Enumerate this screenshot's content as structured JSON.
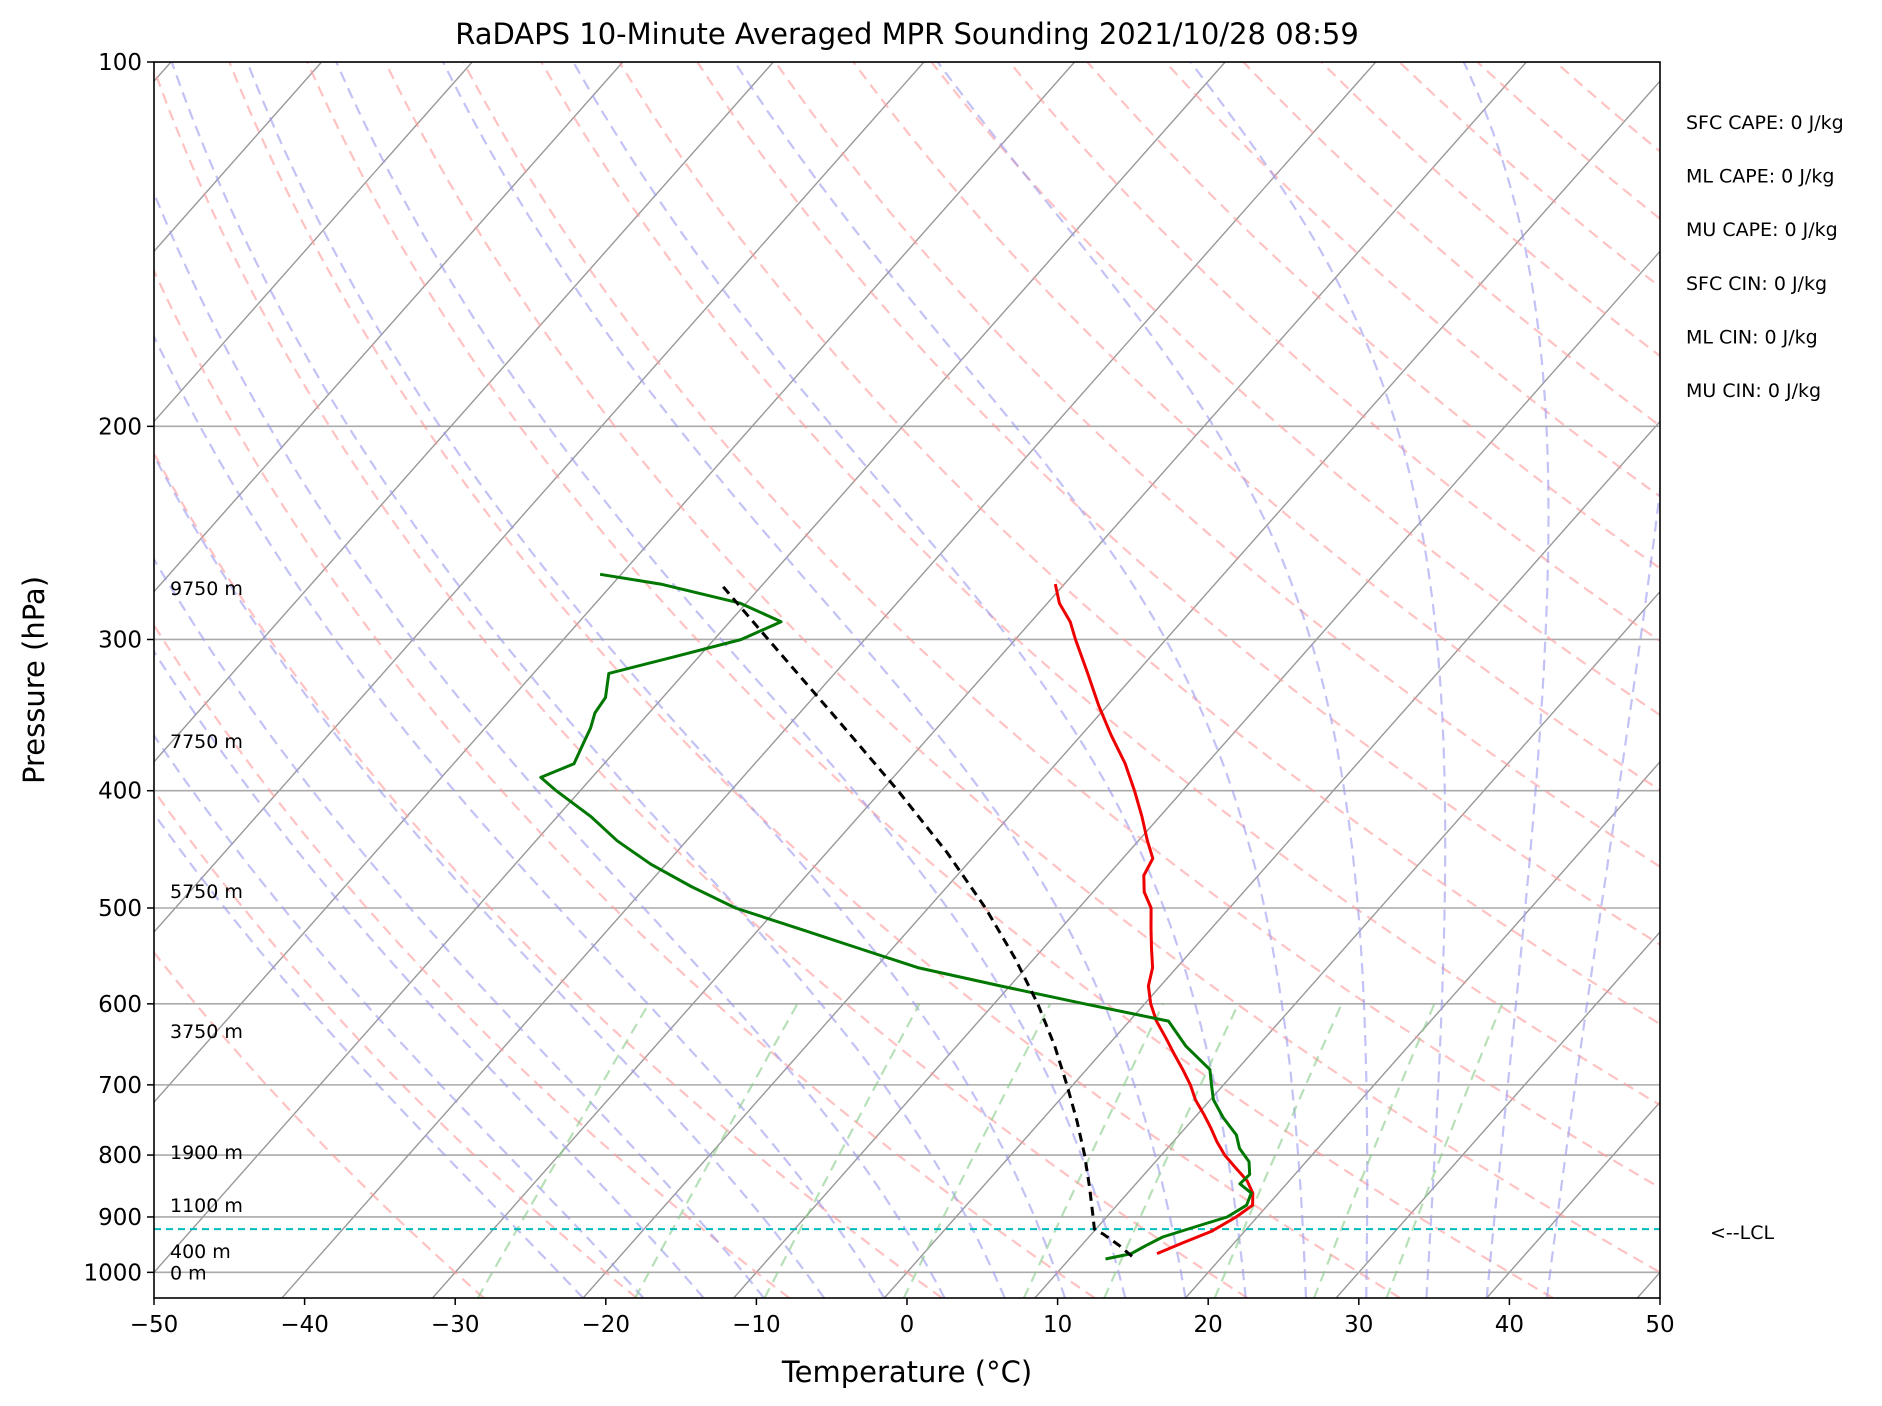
{
  "chart_data": {
    "type": "line",
    "chart_kind": "skew-T log-P sounding",
    "title": "RaDAPS 10-Minute Averaged MPR Sounding 2021/10/28 08:59",
    "xlabel": "Temperature (°C)",
    "ylabel": "Pressure (hPa)",
    "xlim": [
      -50,
      50
    ],
    "ylim": [
      1050,
      100
    ],
    "y_scale": "log",
    "grid": true,
    "x_ticks": [
      -50,
      -40,
      -30,
      -20,
      -10,
      0,
      10,
      20,
      30,
      40,
      50
    ],
    "x_tick_labels": [
      "−50",
      "−40",
      "−30",
      "−20",
      "−10",
      "0",
      "10",
      "20",
      "30",
      "40",
      "50"
    ],
    "y_ticks": [
      100,
      200,
      300,
      400,
      500,
      600,
      700,
      800,
      900,
      1000
    ],
    "y_tick_labels": [
      "100",
      "200",
      "300",
      "400",
      "500",
      "600",
      "700",
      "800",
      "900",
      "1000"
    ],
    "series": [
      {
        "role": "temperature",
        "color": "#ee0000",
        "points": [
          {
            "p": 965,
            "t": 15.5
          },
          {
            "p": 945,
            "t": 16.6
          },
          {
            "p": 925,
            "t": 17.8
          },
          {
            "p": 900,
            "t": 18.6
          },
          {
            "p": 880,
            "t": 19.0
          },
          {
            "p": 860,
            "t": 18.3
          },
          {
            "p": 840,
            "t": 17.2
          },
          {
            "p": 820,
            "t": 15.7
          },
          {
            "p": 800,
            "t": 14.2
          },
          {
            "p": 780,
            "t": 12.9
          },
          {
            "p": 760,
            "t": 11.7
          },
          {
            "p": 740,
            "t": 10.4
          },
          {
            "p": 720,
            "t": 9.0
          },
          {
            "p": 700,
            "t": 7.8
          },
          {
            "p": 680,
            "t": 6.4
          },
          {
            "p": 660,
            "t": 4.9
          },
          {
            "p": 640,
            "t": 3.4
          },
          {
            "p": 620,
            "t": 1.8
          },
          {
            "p": 600,
            "t": 0.4
          },
          {
            "p": 580,
            "t": -0.8
          },
          {
            "p": 560,
            "t": -1.6
          },
          {
            "p": 540,
            "t": -2.8
          },
          {
            "p": 520,
            "t": -4.0
          },
          {
            "p": 500,
            "t": -5.2
          },
          {
            "p": 485,
            "t": -6.6
          },
          {
            "p": 470,
            "t": -7.6
          },
          {
            "p": 455,
            "t": -8.0
          },
          {
            "p": 440,
            "t": -9.4
          },
          {
            "p": 420,
            "t": -11.2
          },
          {
            "p": 400,
            "t": -13.2
          },
          {
            "p": 380,
            "t": -15.4
          },
          {
            "p": 360,
            "t": -18.0
          },
          {
            "p": 340,
            "t": -20.6
          },
          {
            "p": 320,
            "t": -23.2
          },
          {
            "p": 300,
            "t": -26.0
          },
          {
            "p": 290,
            "t": -27.4
          },
          {
            "p": 280,
            "t": -29.2
          },
          {
            "p": 270,
            "t": -30.6
          }
        ]
      },
      {
        "role": "dewpoint",
        "color": "#007700",
        "points": [
          {
            "p": 975,
            "t": 12.4
          },
          {
            "p": 965,
            "t": 13.8
          },
          {
            "p": 950,
            "t": 14.3
          },
          {
            "p": 935,
            "t": 14.9
          },
          {
            "p": 920,
            "t": 16.2
          },
          {
            "p": 900,
            "t": 18.0
          },
          {
            "p": 880,
            "t": 18.6
          },
          {
            "p": 860,
            "t": 18.2
          },
          {
            "p": 845,
            "t": 16.9
          },
          {
            "p": 830,
            "t": 17.0
          },
          {
            "p": 810,
            "t": 16.2
          },
          {
            "p": 790,
            "t": 14.8
          },
          {
            "p": 770,
            "t": 13.8
          },
          {
            "p": 745,
            "t": 11.9
          },
          {
            "p": 720,
            "t": 10.2
          },
          {
            "p": 700,
            "t": 9.2
          },
          {
            "p": 680,
            "t": 8.2
          },
          {
            "p": 650,
            "t": 5.2
          },
          {
            "p": 620,
            "t": 2.6
          },
          {
            "p": 600,
            "t": -4.0
          },
          {
            "p": 580,
            "t": -10.6
          },
          {
            "p": 560,
            "t": -17.2
          },
          {
            "p": 540,
            "t": -22.2
          },
          {
            "p": 520,
            "t": -27.4
          },
          {
            "p": 500,
            "t": -32.8
          },
          {
            "p": 480,
            "t": -37.0
          },
          {
            "p": 460,
            "t": -41.0
          },
          {
            "p": 440,
            "t": -44.6
          },
          {
            "p": 420,
            "t": -47.8
          },
          {
            "p": 400,
            "t": -51.6
          },
          {
            "p": 390,
            "t": -53.4
          },
          {
            "p": 380,
            "t": -52.0
          },
          {
            "p": 365,
            "t": -52.6
          },
          {
            "p": 355,
            "t": -53.0
          },
          {
            "p": 345,
            "t": -53.6
          },
          {
            "p": 335,
            "t": -53.8
          },
          {
            "p": 320,
            "t": -55.0
          },
          {
            "p": 310,
            "t": -51.6
          },
          {
            "p": 300,
            "t": -48.2
          },
          {
            "p": 290,
            "t": -46.6
          },
          {
            "p": 280,
            "t": -50.4
          },
          {
            "p": 270,
            "t": -56.8
          },
          {
            "p": 265,
            "t": -61.4
          }
        ]
      },
      {
        "role": "parcel-profile",
        "color": "#000000",
        "points": [
          {
            "p": 970,
            "t": 14.0
          },
          {
            "p": 950,
            "t": 12.5
          },
          {
            "p": 930,
            "t": 10.8
          },
          {
            "p": 921,
            "t": 9.9
          },
          {
            "p": 900,
            "t": 9.1
          },
          {
            "p": 850,
            "t": 7.1
          },
          {
            "p": 800,
            "t": 4.9
          },
          {
            "p": 750,
            "t": 2.4
          },
          {
            "p": 700,
            "t": -0.4
          },
          {
            "p": 650,
            "t": -3.5
          },
          {
            "p": 600,
            "t": -7.1
          },
          {
            "p": 550,
            "t": -11.3
          },
          {
            "p": 500,
            "t": -16.2
          },
          {
            "p": 450,
            "t": -22.0
          },
          {
            "p": 400,
            "t": -28.9
          },
          {
            "p": 350,
            "t": -37.0
          },
          {
            "p": 300,
            "t": -46.4
          },
          {
            "p": 270,
            "t": -52.8
          }
        ]
      }
    ],
    "lcl": {
      "p": 921,
      "label": "<--LCL"
    },
    "height_labels": [
      {
        "p": 272,
        "text": "9750 m"
      },
      {
        "p": 364,
        "text": "7750 m"
      },
      {
        "p": 484,
        "text": "5750 m"
      },
      {
        "p": 632,
        "text": "3750 m"
      },
      {
        "p": 795,
        "text": "1900 m"
      },
      {
        "p": 880,
        "text": "1100 m"
      },
      {
        "p": 960,
        "text": "400 m"
      },
      {
        "p": 1000,
        "text": "0 m"
      }
    ],
    "stats": [
      "SFC CAPE: 0 J/kg",
      "ML CAPE: 0 J/kg",
      "MU CAPE: 0 J/kg",
      "SFC CIN: 0 J/kg",
      "ML CIN: 0 J/kg",
      "MU CIN: 0 J/kg"
    ],
    "colors": {
      "isotherm": "#999999",
      "isobar": "#aaaaaa",
      "dry_adiabat": "#ff9999",
      "moist_adiabat": "#9999ee",
      "mixing_ratio": "#88cc88",
      "lcl_line": "#00bbbb"
    }
  }
}
